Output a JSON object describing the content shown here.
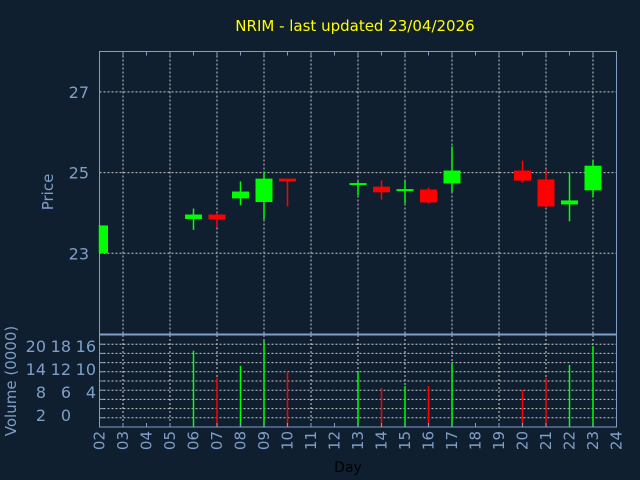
{
  "chart_data": {
    "type": "candlestick",
    "title": "NRIM - last updated 23/04/2026",
    "xlabel": "Day",
    "ylabel": "Price",
    "volume_ylabel": "Volume (0000)",
    "x_ticks": [
      "02",
      "03",
      "04",
      "05",
      "06",
      "07",
      "08",
      "09",
      "10",
      "11",
      "12",
      "13",
      "14",
      "15",
      "16",
      "17",
      "18",
      "19",
      "20",
      "21",
      "22",
      "23",
      "24"
    ],
    "price_ticks": [
      "23",
      "25",
      "27"
    ],
    "volume_ticks": [
      "0",
      "2",
      "4",
      "6",
      "8",
      "10",
      "12",
      "14",
      "16",
      "18",
      "20"
    ],
    "price_ylim": [
      21,
      28
    ],
    "volume_ylim": [
      0,
      20
    ],
    "grid": true,
    "colors": {
      "up": "#00ff00",
      "down": "#ff0000",
      "background": "#0f1f2f",
      "axis": "#7f9fc8",
      "title": "#ffff00",
      "grid": "#c8c8c8"
    },
    "candles": [
      {
        "day": "02",
        "open": 23.0,
        "high": 23.7,
        "low": 23.0,
        "close": 23.69,
        "volume": null
      },
      {
        "day": "06",
        "open": 23.85,
        "high": 24.11,
        "low": 23.58,
        "close": 23.96,
        "volume": 16.6
      },
      {
        "day": "07",
        "open": 23.96,
        "high": 24.0,
        "low": 23.64,
        "close": 23.84,
        "volume": 10.7
      },
      {
        "day": "08",
        "open": 24.36,
        "high": 24.78,
        "low": 24.19,
        "close": 24.53,
        "volume": 13.3
      },
      {
        "day": "09",
        "open": 24.27,
        "high": 25.03,
        "low": 23.84,
        "close": 24.85,
        "volume": 18.7
      },
      {
        "day": "10",
        "open": 24.85,
        "high": 24.85,
        "low": 24.16,
        "close": 24.78,
        "volume": 12.0
      },
      {
        "day": "13",
        "open": 24.69,
        "high": 24.79,
        "low": 24.44,
        "close": 24.74,
        "volume": 12.2
      },
      {
        "day": "14",
        "open": 24.65,
        "high": 24.8,
        "low": 24.33,
        "close": 24.51,
        "volume": 8.5
      },
      {
        "day": "15",
        "open": 24.54,
        "high": 24.8,
        "low": 24.24,
        "close": 24.59,
        "volume": 8.9
      },
      {
        "day": "16",
        "open": 24.58,
        "high": 24.63,
        "low": 24.23,
        "close": 24.26,
        "volume": 8.9
      },
      {
        "day": "17",
        "open": 24.73,
        "high": 25.65,
        "low": 24.53,
        "close": 25.05,
        "volume": 13.8
      },
      {
        "day": "20",
        "open": 25.05,
        "high": 25.3,
        "low": 24.75,
        "close": 24.8,
        "volume": 8.0
      },
      {
        "day": "21",
        "open": 24.83,
        "high": 25.08,
        "low": 24.12,
        "close": 24.16,
        "volume": 10.7
      },
      {
        "day": "22",
        "open": 24.21,
        "high": 25.0,
        "low": 23.79,
        "close": 24.31,
        "volume": 13.5
      },
      {
        "day": "23",
        "open": 24.56,
        "high": 25.3,
        "low": 24.38,
        "close": 25.17,
        "volume": 17.6
      }
    ]
  }
}
